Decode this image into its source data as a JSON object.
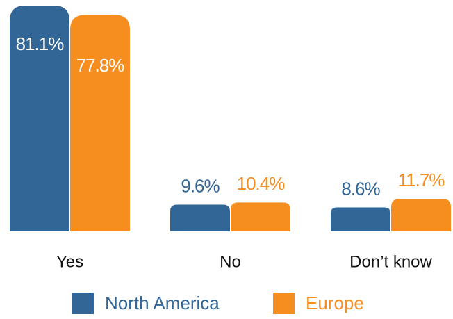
{
  "chart_data": {
    "type": "bar",
    "categories": [
      "Yes",
      "No",
      "Don’t know"
    ],
    "series": [
      {
        "name": "North America",
        "color": "#316697",
        "values": [
          81.1,
          9.6,
          8.6
        ],
        "value_labels": [
          "81.1%",
          "9.6%",
          "8.6%"
        ]
      },
      {
        "name": "Europe",
        "color": "#f68e1f",
        "values": [
          77.8,
          10.4,
          11.7
        ],
        "value_labels": [
          "77.8%",
          "10.4%",
          "11.7%"
        ]
      }
    ]
  }
}
